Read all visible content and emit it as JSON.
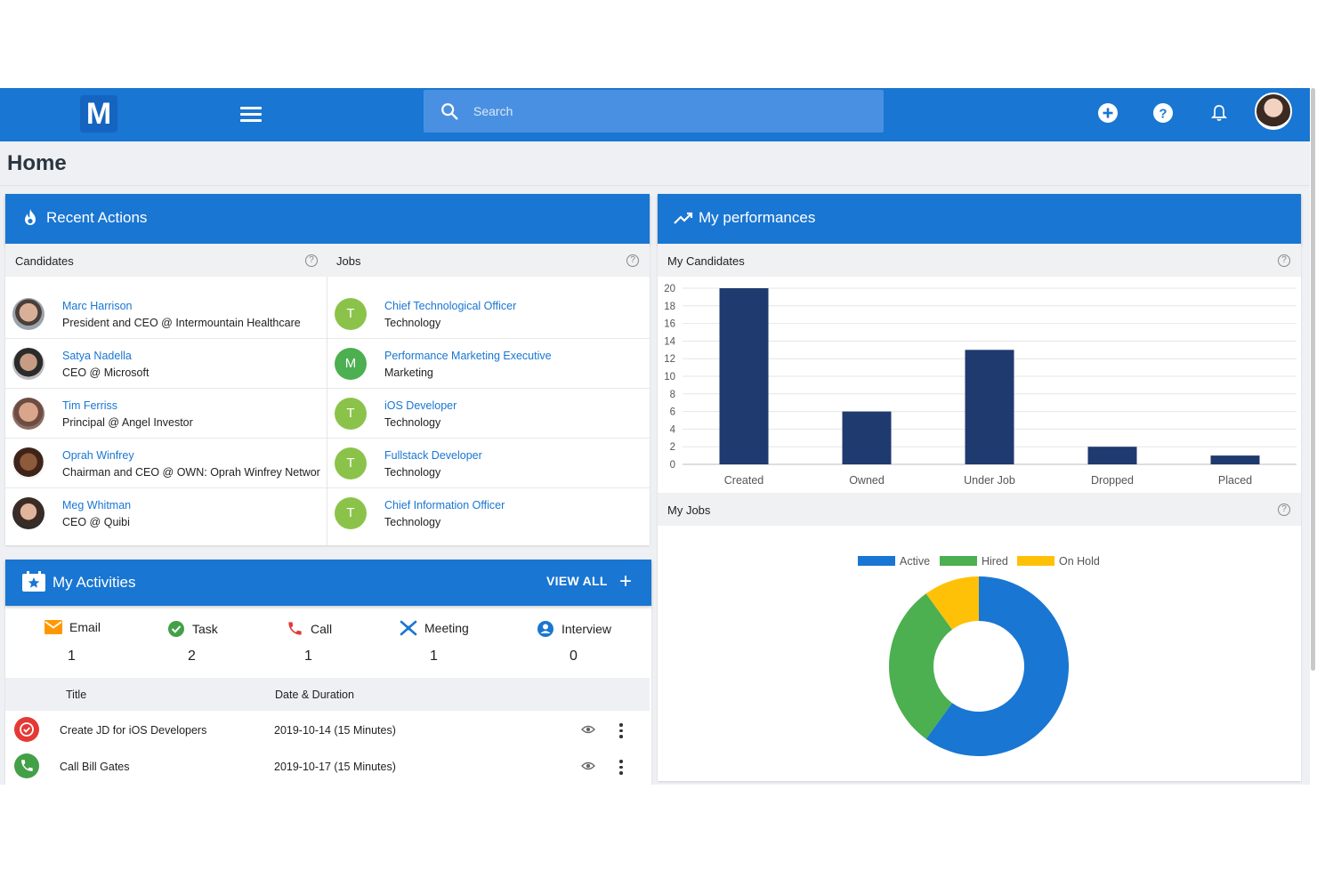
{
  "topbar": {
    "logo_letter": "M",
    "search_placeholder": "Search"
  },
  "page": {
    "title": "Home"
  },
  "recent_actions": {
    "title": "Recent Actions",
    "candidates_label": "Candidates",
    "jobs_label": "Jobs",
    "candidates": [
      {
        "name": "Marc Harrison",
        "role": "President and CEO @ Intermountain Healthcare"
      },
      {
        "name": "Satya Nadella",
        "role": "CEO @ Microsoft"
      },
      {
        "name": "Tim Ferriss",
        "role": "Principal @ Angel Investor"
      },
      {
        "name": "Oprah Winfrey",
        "role": "Chairman and CEO @ OWN: Oprah Winfrey Networ"
      },
      {
        "name": "Meg Whitman",
        "role": "CEO @ Quibi"
      }
    ],
    "jobs": [
      {
        "initial": "T",
        "title": "Chief Technological Officer",
        "category": "Technology"
      },
      {
        "initial": "M",
        "title": "Performance Marketing Executive",
        "category": "Marketing"
      },
      {
        "initial": "T",
        "title": "iOS Developer",
        "category": "Technology"
      },
      {
        "initial": "T",
        "title": "Fullstack Developer",
        "category": "Technology"
      },
      {
        "initial": "T",
        "title": "Chief Information Officer",
        "category": "Technology"
      }
    ]
  },
  "activities": {
    "title": "My Activities",
    "view_all": "VIEW ALL",
    "types": [
      {
        "label": "Email",
        "count": "1",
        "icon": "email-icon"
      },
      {
        "label": "Task",
        "count": "2",
        "icon": "task-check-icon"
      },
      {
        "label": "Call",
        "count": "1",
        "icon": "phone-icon"
      },
      {
        "label": "Meeting",
        "count": "1",
        "icon": "meeting-icon"
      },
      {
        "label": "Interview",
        "count": "0",
        "icon": "interview-icon"
      }
    ],
    "columns": {
      "title": "Title",
      "date": "Date & Duration"
    },
    "rows": [
      {
        "title": "Create JD for iOS Developers",
        "date": "2019-10-14 (15 Minutes)",
        "icon": "task-icon",
        "color": "#e53935"
      },
      {
        "title": "Call Bill Gates",
        "date": "2019-10-17 (15 Minutes)",
        "icon": "phone-icon",
        "color": "#43a047"
      }
    ]
  },
  "performances": {
    "title": "My performances",
    "candidates_label": "My Candidates",
    "jobs_label": "My Jobs"
  },
  "chart_data": [
    {
      "type": "bar",
      "categories": [
        "Created",
        "Owned",
        "Under Job",
        "Dropped",
        "Placed"
      ],
      "values": [
        20,
        6,
        13,
        2,
        1
      ],
      "ylim": [
        0,
        20
      ],
      "yticks": [
        "0",
        "2",
        "4",
        "6",
        "8",
        "10",
        "12",
        "14",
        "16",
        "18",
        "20"
      ],
      "color": "#1f3a6e",
      "grid": true
    },
    {
      "type": "pie",
      "labels": [
        "Active",
        "Hired",
        "On Hold"
      ],
      "values": [
        6,
        3,
        1
      ],
      "colors": [
        "#1976d2",
        "#4caf50",
        "#ffc107"
      ],
      "legend": "top"
    }
  ]
}
